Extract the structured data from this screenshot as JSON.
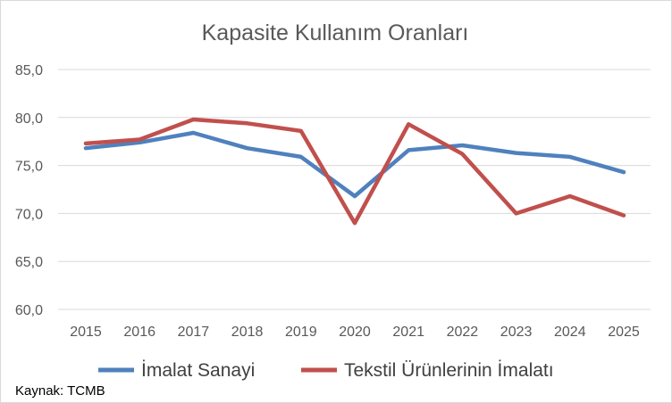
{
  "chart_data": {
    "type": "line",
    "title": "Kapasite Kullanım Oranları",
    "xlabel": "",
    "ylabel": "",
    "x": [
      "2015",
      "2016",
      "2017",
      "2018",
      "2019",
      "2020",
      "2021",
      "2022",
      "2023",
      "2024",
      "2025"
    ],
    "ylim": [
      60,
      85
    ],
    "yticks": [
      "60,0",
      "65,0",
      "70,0",
      "75,0",
      "80,0",
      "85,0"
    ],
    "grid": true,
    "legend_position": "bottom",
    "series": [
      {
        "name": "İmalat Sanayi",
        "color": "#4f81bd",
        "values": [
          76.8,
          77.4,
          78.4,
          76.8,
          75.9,
          71.8,
          76.6,
          77.1,
          76.3,
          75.9,
          74.3
        ]
      },
      {
        "name": "Tekstil Ürünlerinin İmalatı",
        "color": "#c0504d",
        "values": [
          77.3,
          77.7,
          79.8,
          79.4,
          78.6,
          69.0,
          79.3,
          76.2,
          70.0,
          71.8,
          69.8
        ]
      }
    ]
  },
  "source_note": "Kaynak: TCMB"
}
